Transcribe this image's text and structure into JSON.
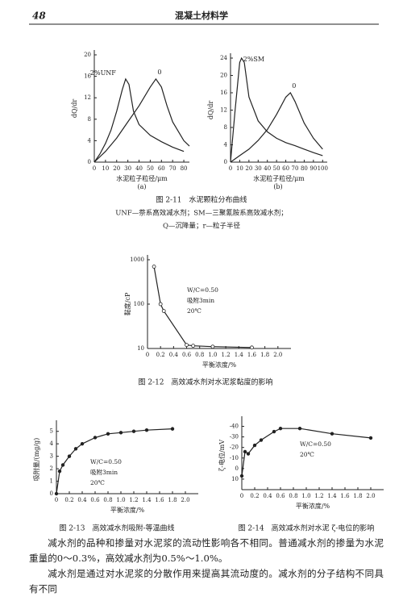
{
  "header": {
    "page_number": "48",
    "title": "混凝土材料学"
  },
  "figure_2_11": {
    "caption": "图 2-11　水泥颗粒分布曲线",
    "notes": [
      "UNF—萘系高效减水剂；SM—三聚氰胺系高效减水剂；",
      "Q—沉降量；r—粒子半径"
    ]
  },
  "chart_data": [
    {
      "type": "line",
      "label": "(a)",
      "xlabel": "水泥粒子粒径/μm",
      "ylabel": "dQ/dr",
      "xlim": [
        0,
        85
      ],
      "ylim": [
        0,
        20
      ],
      "xticks": [
        0,
        10,
        20,
        30,
        40,
        50,
        60,
        70,
        80
      ],
      "yticks": [
        0,
        4,
        8,
        12,
        16,
        20
      ],
      "series": [
        {
          "name": "2%UNF",
          "color": "#222222",
          "x": [
            0,
            5,
            10,
            15,
            20,
            25,
            28,
            31,
            35,
            40,
            50,
            60,
            70,
            80
          ],
          "values": [
            0,
            1.5,
            3.5,
            6,
            9.5,
            13.5,
            15.5,
            14.5,
            9.5,
            7,
            5,
            3.8,
            2.8,
            2
          ]
        },
        {
          "name": "0",
          "color": "#222222",
          "x": [
            0,
            10,
            20,
            30,
            40,
            50,
            55,
            60,
            65,
            70,
            80,
            85
          ],
          "values": [
            0,
            2,
            4.5,
            7.5,
            10.5,
            14,
            15.5,
            14,
            10.5,
            7.5,
            4,
            3
          ]
        }
      ]
    },
    {
      "type": "line",
      "label": "(b)",
      "xlabel": "水泥粒子粒径/μm",
      "ylabel": "dQ/dr",
      "xlim": [
        0,
        105
      ],
      "ylim": [
        0,
        24
      ],
      "xticks": [
        0,
        10,
        20,
        30,
        40,
        50,
        60,
        70,
        80,
        90,
        100
      ],
      "yticks": [
        0,
        4,
        8,
        12,
        16,
        20,
        24
      ],
      "series": [
        {
          "name": "2%SM",
          "color": "#222222",
          "x": [
            0,
            5,
            10,
            12,
            15,
            20,
            30,
            40,
            50,
            60,
            70,
            80,
            90,
            100
          ],
          "values": [
            0,
            12,
            23,
            24,
            23,
            15,
            9.5,
            7,
            5.5,
            4.5,
            3.8,
            3,
            2.2,
            1.5
          ]
        },
        {
          "name": "0",
          "color": "#222222",
          "x": [
            0,
            10,
            20,
            30,
            40,
            50,
            60,
            65,
            70,
            80,
            90,
            100
          ],
          "values": [
            0,
            1.5,
            3,
            5,
            7.5,
            11,
            15,
            16,
            14,
            9,
            5.5,
            3
          ]
        }
      ]
    },
    {
      "type": "line",
      "caption": "图 2-12　高效减水剂对水泥浆黏度的影响",
      "xlabel": "平衡浓度/%",
      "ylabel": "黏度/cP",
      "log_y": true,
      "annotation": [
        "W/C=0.50",
        "吸附3min",
        "20℃"
      ],
      "xlim": [
        0,
        2.2
      ],
      "ylim": [
        10,
        1000
      ],
      "xticks": [
        0,
        0.2,
        0.4,
        0.6,
        0.8,
        {
          "value": 1,
          "label": "1.0"
        },
        1.2,
        1.4,
        1.6,
        1.8,
        {
          "value": 2,
          "label": "2.0"
        }
      ],
      "yticks": [
        10,
        100,
        1000
      ],
      "series": [
        {
          "color": "#222222",
          "marker": "open-circle",
          "x": [
            0.1,
            0.2,
            0.25,
            0.6,
            0.7,
            1.0,
            1.6
          ],
          "values": [
            700,
            100,
            70,
            12,
            11.5,
            11,
            10.5
          ]
        }
      ]
    },
    {
      "type": "line",
      "caption": "图 2-13　高效减水剂吸附-等温曲线",
      "xlabel": "平衡浓度/%",
      "ylabel": "吸附量/(mg/g)",
      "annotation": [
        "W/C=0.50",
        "吸附3min",
        "20℃"
      ],
      "xlim": [
        0,
        2.2
      ],
      "ylim": [
        0,
        5.5
      ],
      "xticks": [
        0,
        0.2,
        0.4,
        0.6,
        0.8,
        {
          "value": 1,
          "label": "1.0"
        },
        1.2,
        1.4,
        1.6,
        1.8,
        {
          "value": 2,
          "label": "2.0"
        }
      ],
      "yticks": [
        0,
        1,
        2,
        3,
        4,
        5
      ],
      "series": [
        {
          "color": "#222222",
          "marker": "dot",
          "x": [
            0,
            0.05,
            0.1,
            0.2,
            0.3,
            0.4,
            0.6,
            0.8,
            1.0,
            1.2,
            1.4,
            1.8
          ],
          "values": [
            0,
            1.8,
            2.3,
            3,
            3.6,
            4,
            4.5,
            4.8,
            4.9,
            5,
            5.1,
            5.2
          ]
        }
      ]
    },
    {
      "type": "line",
      "caption": "图 2-14　高效减水剂对水泥 ζ-电位的影响",
      "xlabel": "平衡浓度/%",
      "ylabel": "ζ-电位/mV",
      "annotation": [
        "W/C=0.50",
        "20℃"
      ],
      "xlim": [
        0,
        2.2
      ],
      "ylim": [
        20,
        -45
      ],
      "xticks": [
        0,
        0.2,
        0.4,
        0.6,
        0.8,
        {
          "value": 1,
          "label": "1.0"
        },
        1.2,
        1.4,
        1.6,
        1.8,
        {
          "value": 2,
          "label": "2.0"
        }
      ],
      "yticks": [
        10,
        0,
        -10,
        -20,
        -30,
        -40
      ],
      "series": [
        {
          "color": "#222222",
          "marker": "dot",
          "x": [
            0,
            0.05,
            0.1,
            0.2,
            0.3,
            0.5,
            0.6,
            0.9,
            1.4,
            2.0
          ],
          "values": [
            7,
            -16,
            -14,
            -22,
            -27,
            -35,
            -38,
            -38,
            -33,
            -29
          ]
        }
      ]
    }
  ],
  "body": {
    "paragraphs": [
      "减水剂的品种和掺量对水泥浆的流动性影响各不相同。普通减水剂的掺量为水泥重量的0～0.3%，高效减水剂为0.5%～1.0%。",
      "减水剂是通过对水泥浆的分散作用来提高其流动度的。减水剂的分子结构不同具有不同"
    ]
  }
}
